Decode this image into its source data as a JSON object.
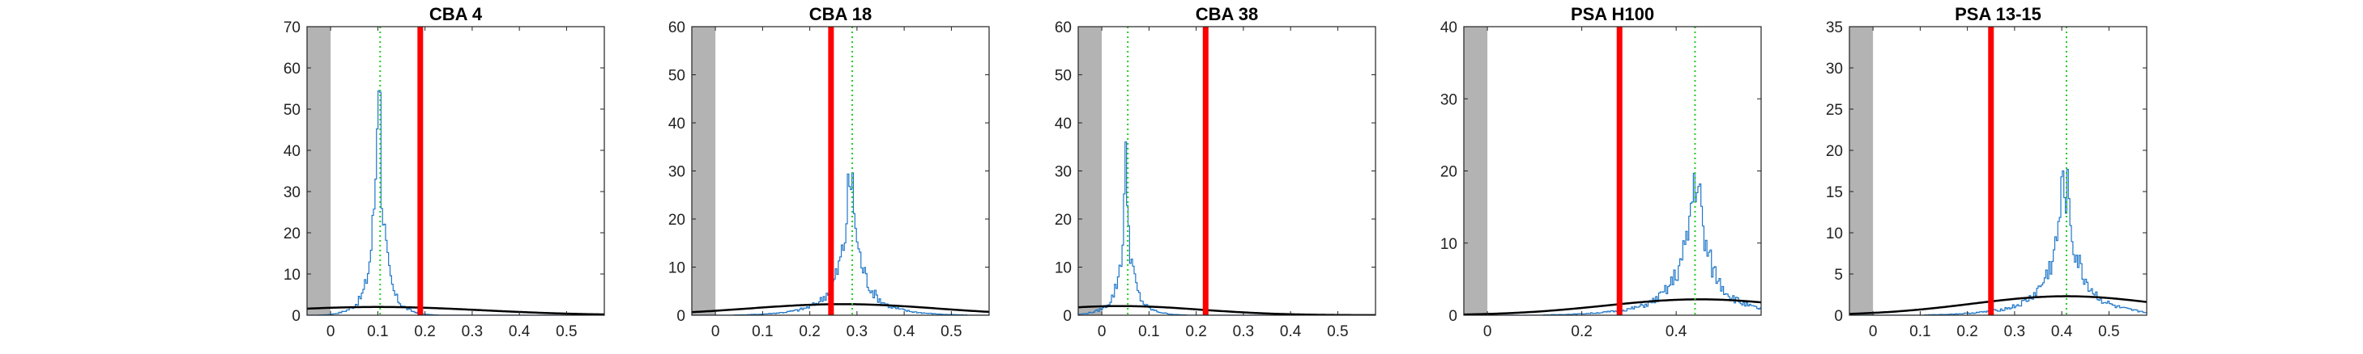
{
  "chart_data": [
    {
      "type": "histogram",
      "title": "CBA 4",
      "xlim": [
        -0.05,
        0.58
      ],
      "ylim": [
        0,
        70
      ],
      "xticks": [
        0,
        0.1,
        0.2,
        0.3,
        0.4,
        0.5
      ],
      "xtick_labels": [
        "0",
        "0.1",
        "0.2",
        "0.3",
        "0.4",
        "0.5"
      ],
      "yticks": [
        0,
        10,
        20,
        30,
        40,
        50,
        60,
        70
      ],
      "ytick_labels": [
        "0",
        "10",
        "20",
        "30",
        "40",
        "50",
        "60",
        "70"
      ],
      "shaded_region": [
        -0.05,
        0.0
      ],
      "histogram": {
        "center": 0.1,
        "spread": 0.01,
        "peak": 63
      },
      "threshold_line": 0.19,
      "mean_line": 0.105,
      "gaussian_fit": {
        "mu": 0.1,
        "sigma": 0.22,
        "peak": 2.0
      }
    },
    {
      "type": "histogram",
      "title": "CBA 18",
      "xlim": [
        -0.05,
        0.58
      ],
      "ylim": [
        0,
        60
      ],
      "xticks": [
        0,
        0.1,
        0.2,
        0.3,
        0.4,
        0.5
      ],
      "xtick_labels": [
        "0",
        "0.1",
        "0.2",
        "0.3",
        "0.4",
        "0.5"
      ],
      "yticks": [
        0,
        10,
        20,
        30,
        40,
        50,
        60
      ],
      "ytick_labels": [
        "0",
        "10",
        "20",
        "30",
        "40",
        "50",
        "60"
      ],
      "shaded_region": [
        -0.05,
        0.0
      ],
      "histogram": {
        "center": 0.285,
        "spread": 0.022,
        "peak": 28
      },
      "threshold_line": 0.245,
      "mean_line": 0.29,
      "gaussian_fit": {
        "mu": 0.27,
        "sigma": 0.2,
        "peak": 2.3
      }
    },
    {
      "type": "histogram",
      "title": "CBA 38",
      "xlim": [
        -0.05,
        0.58
      ],
      "ylim": [
        0,
        60
      ],
      "xticks": [
        0,
        0.1,
        0.2,
        0.3,
        0.4,
        0.5
      ],
      "xtick_labels": [
        "0",
        "0.1",
        "0.2",
        "0.3",
        "0.4",
        "0.5"
      ],
      "yticks": [
        0,
        10,
        20,
        30,
        40,
        50,
        60
      ],
      "ytick_labels": [
        "0",
        "10",
        "20",
        "30",
        "40",
        "50",
        "60"
      ],
      "shaded_region": [
        -0.05,
        0.0
      ],
      "histogram": {
        "center": 0.05,
        "spread": 0.011,
        "peak": 30
      },
      "threshold_line": 0.22,
      "mean_line": 0.055,
      "gaussian_fit": {
        "mu": 0.04,
        "sigma": 0.17,
        "peak": 1.9
      }
    },
    {
      "type": "histogram",
      "title": "PSA H100",
      "xlim": [
        -0.05,
        0.58
      ],
      "ylim": [
        0,
        40
      ],
      "xticks": [
        0,
        0.2,
        0.4
      ],
      "xtick_labels": [
        "0",
        "0.2",
        "0.4"
      ],
      "yticks": [
        0,
        10,
        20,
        30,
        40
      ],
      "ytick_labels": [
        "0",
        "10",
        "20",
        "30",
        "40"
      ],
      "shaded_region": [
        -0.05,
        0.0
      ],
      "histogram": {
        "center": 0.44,
        "spread": 0.03,
        "peak": 19
      },
      "threshold_line": 0.28,
      "mean_line": 0.44,
      "gaussian_fit": {
        "mu": 0.45,
        "sigma": 0.2,
        "peak": 2.2
      }
    },
    {
      "type": "histogram",
      "title": "PSA 13-15",
      "xlim": [
        -0.05,
        0.58
      ],
      "ylim": [
        0,
        35
      ],
      "xticks": [
        0,
        0.1,
        0.2,
        0.3,
        0.4,
        0.5
      ],
      "xtick_labels": [
        "0",
        "0.1",
        "0.2",
        "0.3",
        "0.4",
        "0.5"
      ],
      "yticks": [
        0,
        5,
        10,
        15,
        20,
        25,
        30,
        35
      ],
      "ytick_labels": [
        "0",
        "5",
        "10",
        "15",
        "20",
        "25",
        "30",
        "35"
      ],
      "shaded_region": [
        -0.05,
        0.0
      ],
      "histogram": {
        "center": 0.405,
        "spread": 0.028,
        "peak": 16
      },
      "threshold_line": 0.25,
      "mean_line": 0.41,
      "gaussian_fit": {
        "mu": 0.41,
        "sigma": 0.2,
        "peak": 2.3
      }
    }
  ],
  "colors": {
    "histogram": "#1f77c8",
    "threshold": "#ff0000",
    "mean": "#22cc22",
    "fit": "#000000",
    "shade": "#b3b3b3",
    "axis": "#222222"
  }
}
